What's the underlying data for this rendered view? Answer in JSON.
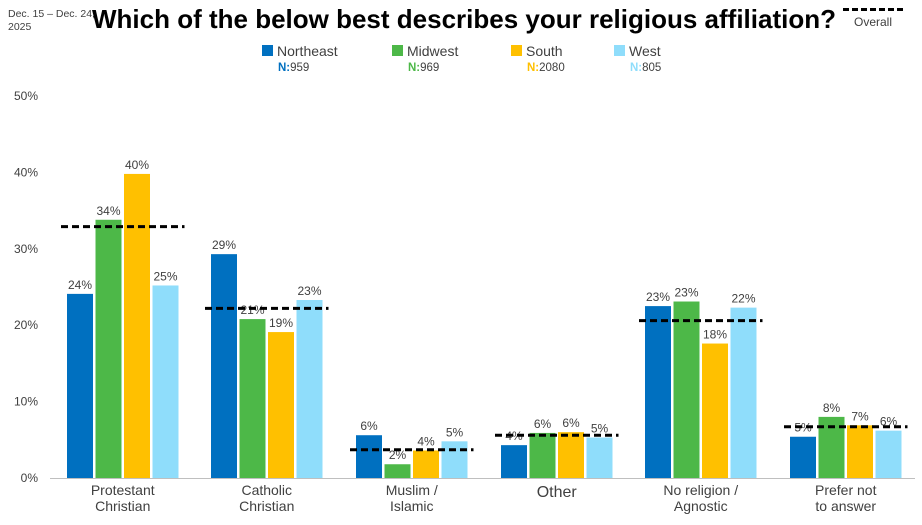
{
  "date_range": "Dec. 15 – Dec. 24, 2025",
  "chart_data": {
    "type": "bar",
    "title": "Which of the below best describes your religious affiliation?",
    "ylim": [
      0,
      50
    ],
    "yticks": [
      "0%",
      "10%",
      "20%",
      "30%",
      "40%",
      "50%"
    ],
    "ytick_values": [
      0,
      10,
      20,
      30,
      40,
      50
    ],
    "value_suffix": "%",
    "categories": [
      "Protestant\nChristian",
      "Catholic\nChristian",
      "Muslim /\nIslamic",
      "Other",
      "No religion /\nAgnostic",
      "Prefer not\nto answer"
    ],
    "series": [
      {
        "name": "Northeast",
        "n_label": "N:",
        "n": "959",
        "color": "#0070C0",
        "values": [
          24,
          29,
          6,
          4,
          23,
          5
        ],
        "bar_values": [
          24.1,
          29.3,
          5.6,
          4.3,
          22.5,
          5.4
        ]
      },
      {
        "name": "Midwest",
        "n_label": "N:",
        "n": "969",
        "color": "#4DB848",
        "values": [
          34,
          21,
          2,
          6,
          23,
          8
        ],
        "bar_values": [
          33.8,
          20.8,
          1.8,
          5.9,
          23.1,
          8.0
        ]
      },
      {
        "name": "South",
        "n_label": "N:",
        "n": "2080",
        "color": "#FFC000",
        "values": [
          40,
          19,
          4,
          6,
          18,
          7
        ],
        "bar_values": [
          39.8,
          19.1,
          3.6,
          6.0,
          17.6,
          6.9
        ]
      },
      {
        "name": "West",
        "n_label": "N:",
        "n": "805",
        "color": "#8FDDFB",
        "values": [
          25,
          23,
          5,
          5,
          22,
          6
        ],
        "bar_values": [
          25.2,
          23.3,
          4.8,
          5.3,
          22.3,
          6.2
        ]
      }
    ],
    "overall": {
      "label": "Overall",
      "values": [
        32.9,
        22.2,
        3.7,
        5.6,
        20.6,
        6.7
      ]
    },
    "legend_position": "top",
    "grid": false
  }
}
